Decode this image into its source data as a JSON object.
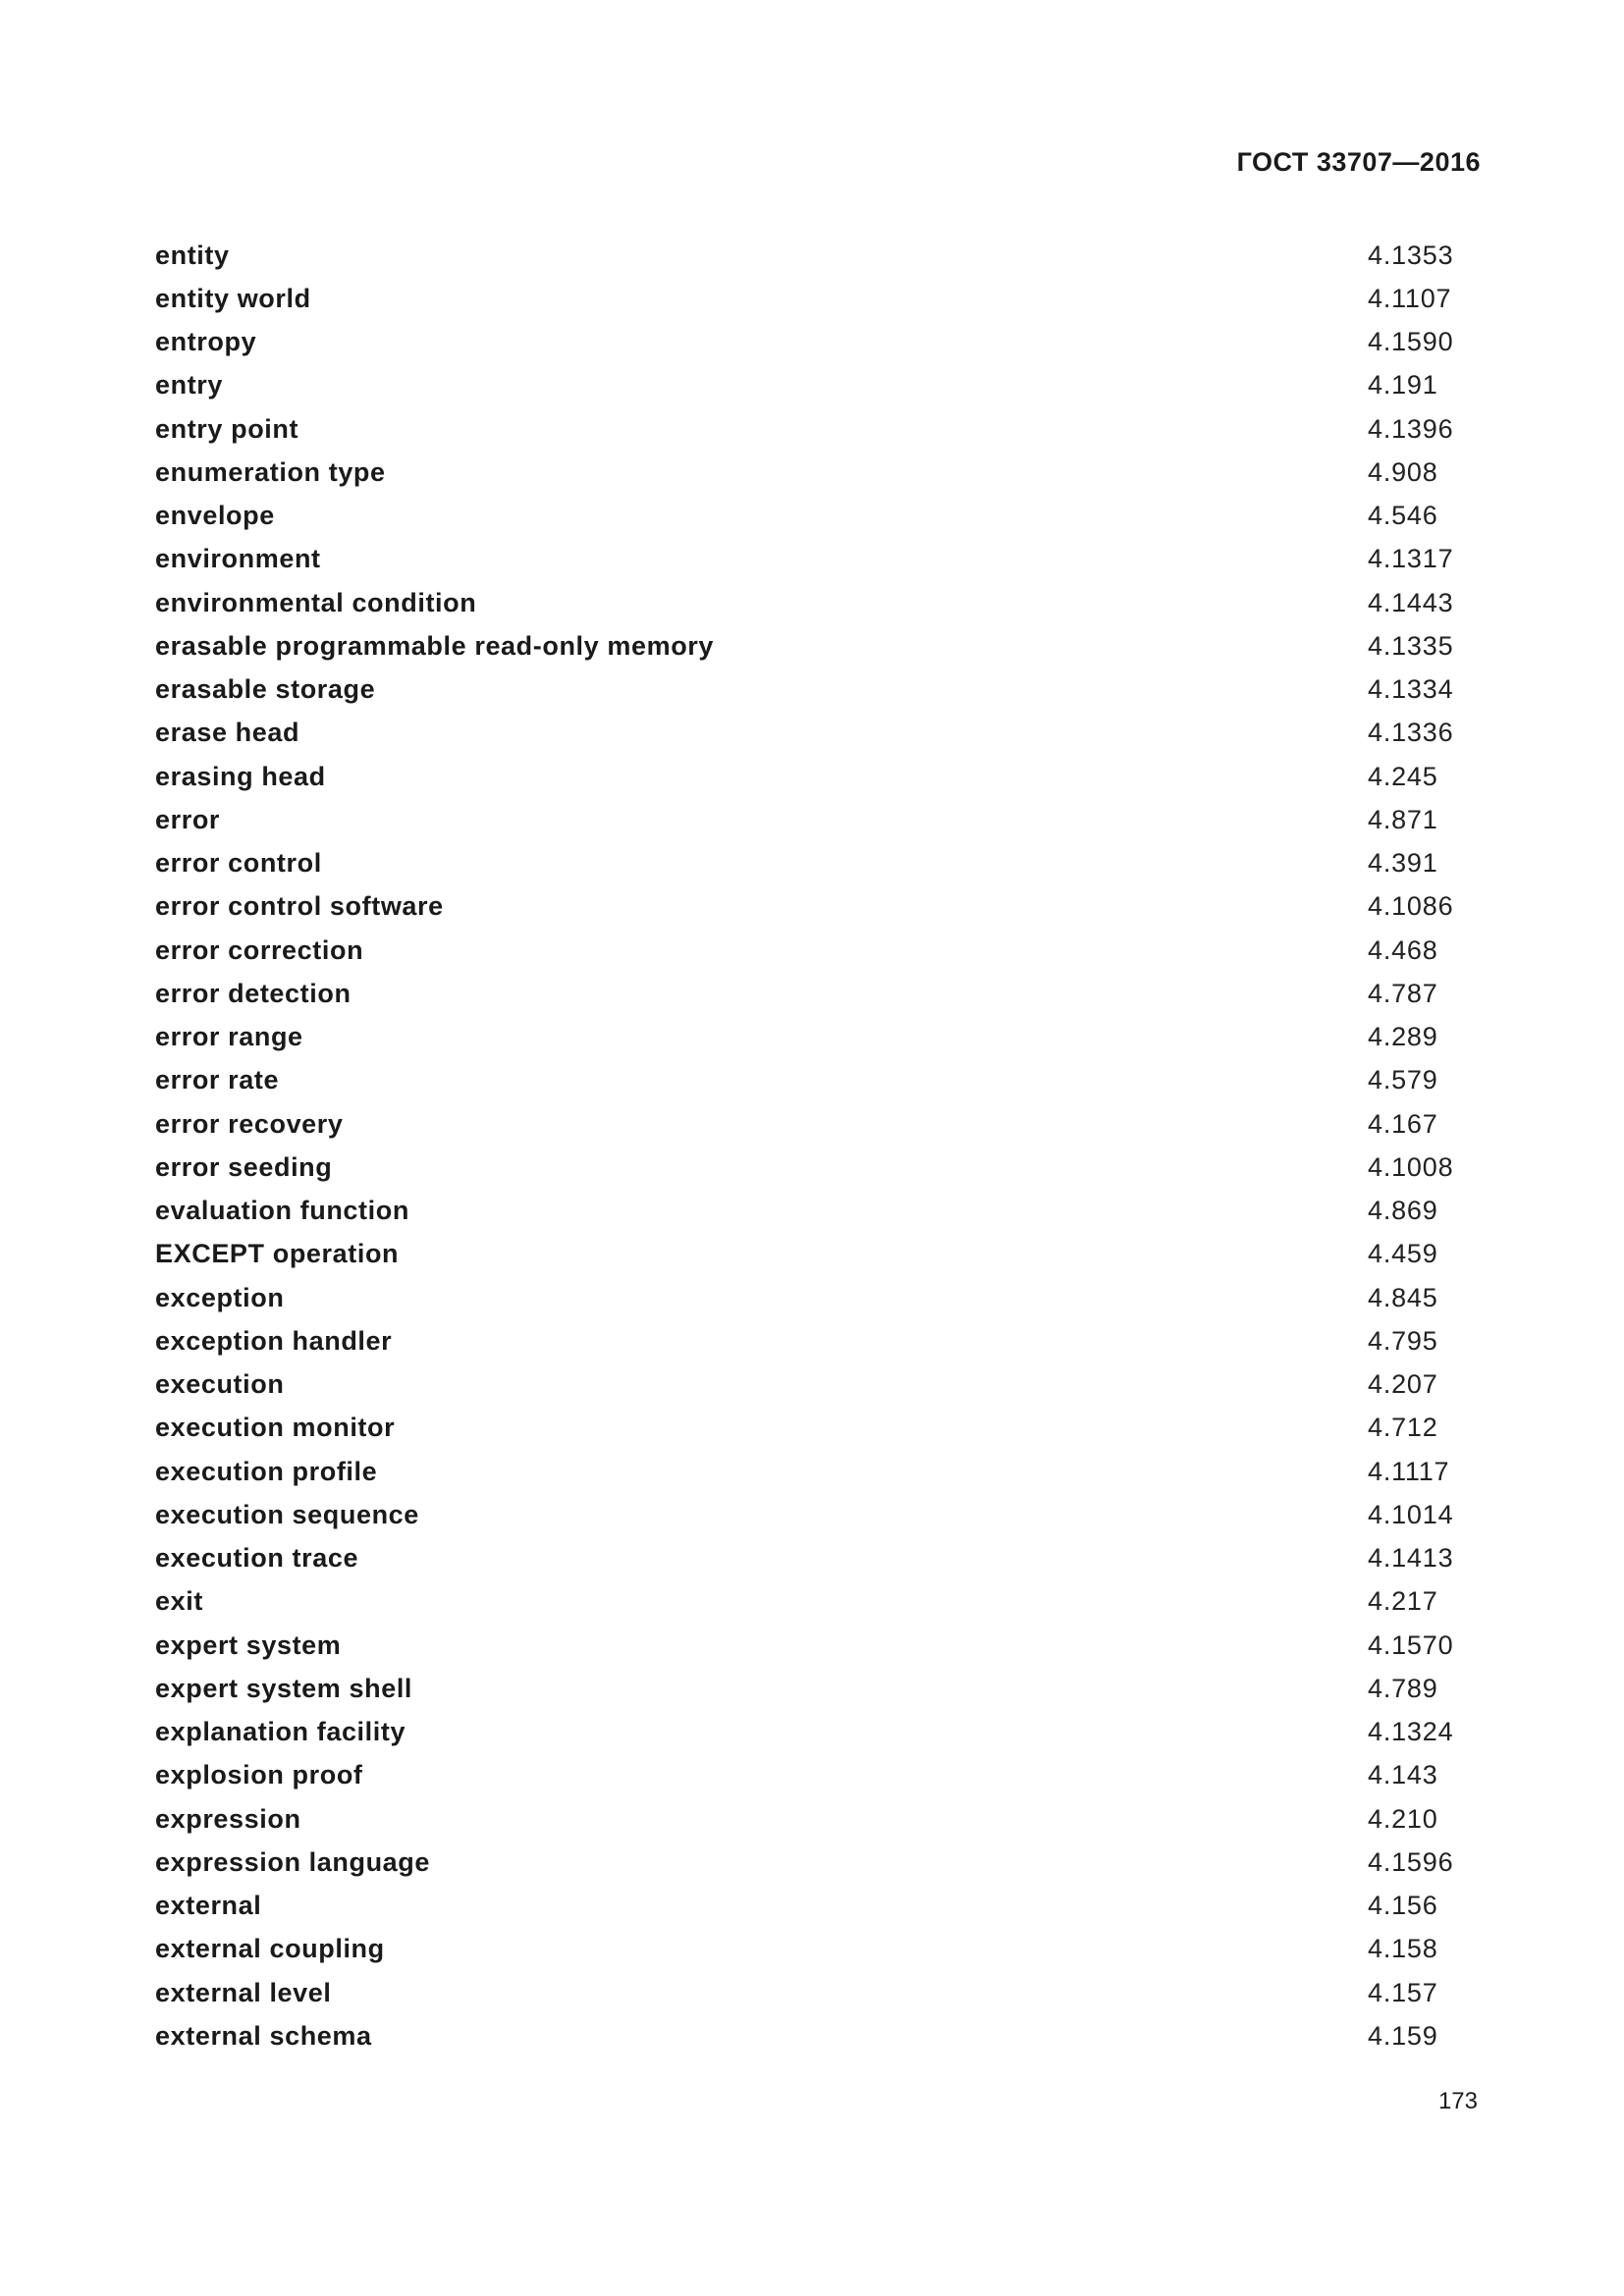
{
  "header": {
    "standard": "ГОСТ 33707—2016"
  },
  "entries": [
    {
      "term": "entity",
      "ref": "4.1353"
    },
    {
      "term": "entity world",
      "ref": "4.1107"
    },
    {
      "term": "entropy",
      "ref": "4.1590"
    },
    {
      "term": "entry",
      "ref": "4.191"
    },
    {
      "term": "entry point",
      "ref": "4.1396"
    },
    {
      "term": "enumeration type",
      "ref": "4.908"
    },
    {
      "term": "envelope",
      "ref": "4.546"
    },
    {
      "term": "environment",
      "ref": "4.1317"
    },
    {
      "term": "environmental condition",
      "ref": "4.1443"
    },
    {
      "term": "erasable programmable read-only memory",
      "ref": "4.1335"
    },
    {
      "term": "erasable storage",
      "ref": "4.1334"
    },
    {
      "term": "erase head",
      "ref": "4.1336"
    },
    {
      "term": "erasing head",
      "ref": "4.245"
    },
    {
      "term": "error",
      "ref": "4.871"
    },
    {
      "term": "error control",
      "ref": "4.391"
    },
    {
      "term": "error control software",
      "ref": "4.1086"
    },
    {
      "term": "error correction",
      "ref": "4.468"
    },
    {
      "term": "error detection",
      "ref": "4.787"
    },
    {
      "term": "error range",
      "ref": "4.289"
    },
    {
      "term": "error rate",
      "ref": "4.579"
    },
    {
      "term": "error recovery",
      "ref": "4.167"
    },
    {
      "term": "error seeding",
      "ref": "4.1008"
    },
    {
      "term": "evaluation function",
      "ref": "4.869"
    },
    {
      "term": "EXCEPT operation",
      "ref": "4.459"
    },
    {
      "term": "exception",
      "ref": "4.845"
    },
    {
      "term": "exception handler",
      "ref": "4.795"
    },
    {
      "term": "execution",
      "ref": "4.207"
    },
    {
      "term": "execution monitor",
      "ref": "4.712"
    },
    {
      "term": "execution profile",
      "ref": "4.1117"
    },
    {
      "term": "execution sequence",
      "ref": "4.1014"
    },
    {
      "term": "execution trace",
      "ref": "4.1413"
    },
    {
      "term": "exit",
      "ref": "4.217"
    },
    {
      "term": "expert system",
      "ref": "4.1570"
    },
    {
      "term": "expert system shell",
      "ref": "4.789"
    },
    {
      "term": "explanation facility",
      "ref": "4.1324"
    },
    {
      "term": "explosion proof",
      "ref": "4.143"
    },
    {
      "term": "expression",
      "ref": "4.210"
    },
    {
      "term": "expression language",
      "ref": "4.1596"
    },
    {
      "term": "external",
      "ref": "4.156"
    },
    {
      "term": "external coupling",
      "ref": "4.158"
    },
    {
      "term": "external level",
      "ref": "4.157"
    },
    {
      "term": "external schema",
      "ref": "4.159"
    }
  ],
  "footer": {
    "page_number": "173"
  }
}
